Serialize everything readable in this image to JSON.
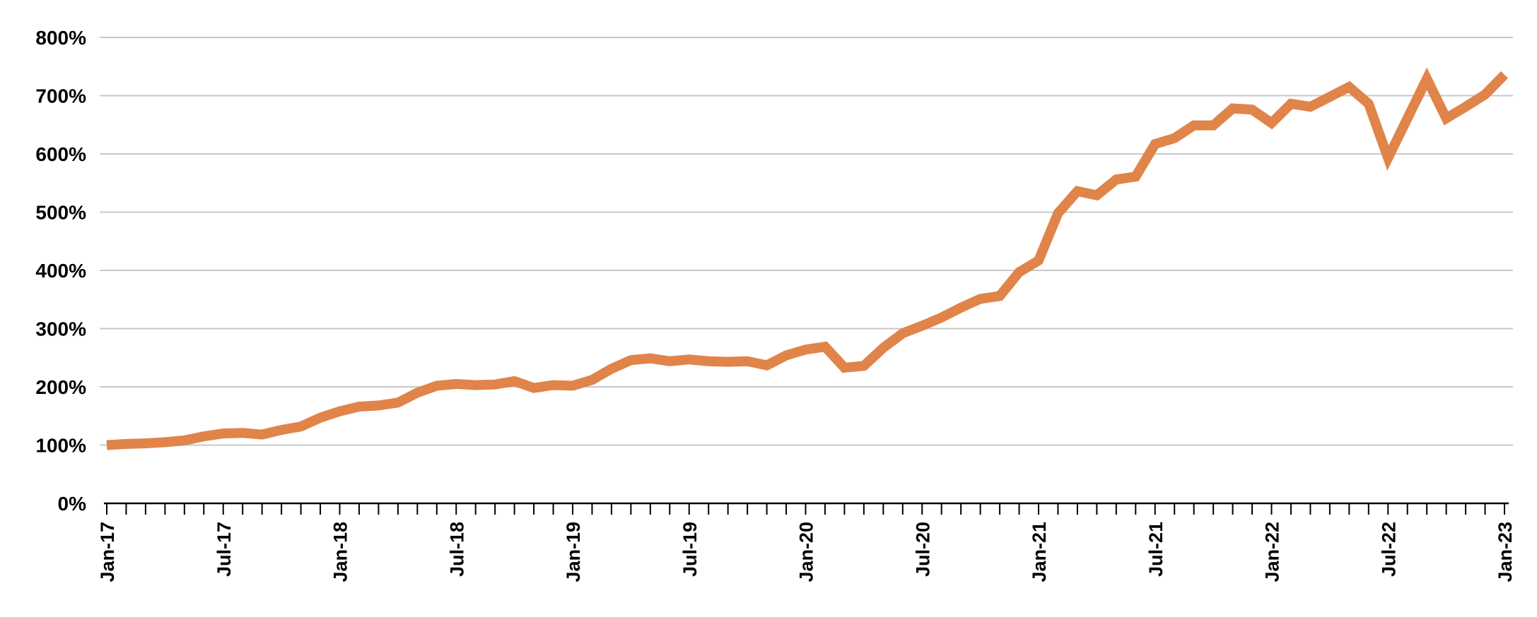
{
  "chart_data": {
    "type": "line",
    "title": "",
    "xlabel": "",
    "ylabel": "",
    "ylim": [
      0,
      800
    ],
    "y_tick_labels": [
      "0%",
      "100%",
      "200%",
      "300%",
      "400%",
      "500%",
      "600%",
      "700%",
      "800%"
    ],
    "x_tick_labels": [
      "Jan-17",
      "Jul-17",
      "Jan-18",
      "Jul-18",
      "Jan-19",
      "Jul-19",
      "Jan-20",
      "Jul-20",
      "Jan-21",
      "Jul-21",
      "Jan-22",
      "Jul-22",
      "Jan-23"
    ],
    "x_range": [
      "Jan-17",
      "Jan-23"
    ],
    "grid": "horizontal",
    "legend": "none",
    "line_color": "#E0844A",
    "series": [
      {
        "values": [
          100,
          102,
          103,
          105,
          108,
          115,
          120,
          121,
          118,
          126,
          132,
          147,
          158,
          166,
          168,
          173,
          190,
          202,
          205,
          203,
          204,
          210,
          198,
          203,
          202,
          212,
          231,
          246,
          249,
          244,
          247,
          244,
          243,
          244,
          237,
          254,
          264,
          269,
          233,
          236,
          267,
          292,
          305,
          319,
          336,
          351,
          356,
          397,
          417,
          498,
          536,
          529,
          556,
          561,
          617,
          627,
          649,
          649,
          678,
          676,
          653,
          686,
          681,
          698,
          715,
          686,
          593,
          661,
          729,
          661,
          681,
          702,
          736
        ]
      }
    ]
  }
}
